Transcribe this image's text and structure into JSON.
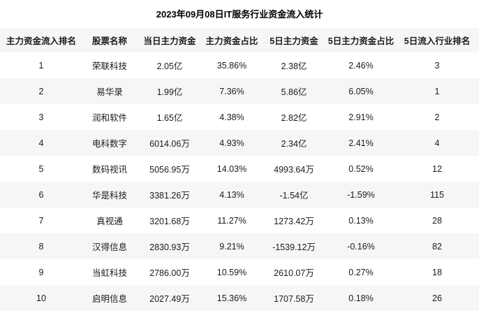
{
  "title": "2023年09月08日IT服务行业资金流入统计",
  "colors": {
    "row_alt_background": "#f6f6f8",
    "text": "#1a1a1a",
    "background": "#ffffff"
  },
  "chart_data": {
    "type": "table",
    "title": "2023年09月08日IT服务行业资金流入统计",
    "columns": [
      "主力资金流入排名",
      "股票名称",
      "当日主力资金",
      "主力资金占比",
      "5日主力资金",
      "5日主力资金占比",
      "5日流入行业排名"
    ],
    "rows": [
      [
        "1",
        "荣联科技",
        "2.05亿",
        "35.86%",
        "2.38亿",
        "2.46%",
        "3"
      ],
      [
        "2",
        "易华录",
        "1.99亿",
        "7.36%",
        "5.86亿",
        "6.05%",
        "1"
      ],
      [
        "3",
        "润和软件",
        "1.65亿",
        "4.38%",
        "2.82亿",
        "2.91%",
        "2"
      ],
      [
        "4",
        "电科数字",
        "6014.06万",
        "4.93%",
        "2.34亿",
        "2.41%",
        "4"
      ],
      [
        "5",
        "数码视讯",
        "5056.95万",
        "14.03%",
        "4993.64万",
        "0.52%",
        "12"
      ],
      [
        "6",
        "华是科技",
        "3381.26万",
        "4.13%",
        "-1.54亿",
        "-1.59%",
        "115"
      ],
      [
        "7",
        "真视通",
        "3201.68万",
        "11.27%",
        "1273.42万",
        "0.13%",
        "28"
      ],
      [
        "8",
        "汉得信息",
        "2830.93万",
        "9.21%",
        "-1539.12万",
        "-0.16%",
        "82"
      ],
      [
        "9",
        "当虹科技",
        "2786.00万",
        "10.59%",
        "2610.07万",
        "0.27%",
        "18"
      ],
      [
        "10",
        "启明信息",
        "2027.49万",
        "15.36%",
        "1707.58万",
        "0.18%",
        "26"
      ]
    ]
  }
}
